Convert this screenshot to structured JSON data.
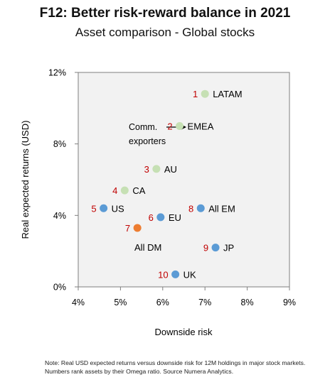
{
  "title": "F12: Better risk-reward balance in 2021",
  "subtitle": "Asset comparison - Global stocks",
  "note": "Note: Real USD expected returns versus downside risk for 12M holdings in major stock markets. Numbers rank assets by their Omega ratio. Source Numera Analytics.",
  "chart_data": {
    "type": "scatter",
    "title": "F12: Better risk-reward balance in 2021",
    "subtitle": "Asset comparison - Global stocks",
    "xlabel": "Downside risk",
    "ylabel": "Real expected returns (USD)",
    "xlim": [
      4,
      9
    ],
    "ylim": [
      0,
      12
    ],
    "xticks": [
      "4%",
      "5%",
      "6%",
      "7%",
      "8%",
      "9%"
    ],
    "yticks": [
      "0%",
      "4%",
      "8%",
      "12%"
    ],
    "grid": false,
    "annotation": {
      "text_line1": "Comm.",
      "text_line2": "exporters",
      "arrow_to": "EMEA"
    },
    "colors": {
      "commodity": "#c6e0b4",
      "blue": "#5b9bd5",
      "orange": "#ed7d31",
      "rank": "#c00000"
    },
    "points": [
      {
        "rank": "1",
        "label": "LATAM",
        "x": 7.0,
        "y": 10.8,
        "group": "commodity"
      },
      {
        "rank": "2",
        "label": "EMEA",
        "x": 6.4,
        "y": 9.0,
        "group": "commodity"
      },
      {
        "rank": "3",
        "label": "AU",
        "x": 5.85,
        "y": 6.6,
        "group": "commodity"
      },
      {
        "rank": "4",
        "label": "CA",
        "x": 5.1,
        "y": 5.4,
        "group": "commodity"
      },
      {
        "rank": "5",
        "label": "US",
        "x": 4.6,
        "y": 4.4,
        "group": "blue"
      },
      {
        "rank": "6",
        "label": "EU",
        "x": 5.95,
        "y": 3.9,
        "group": "blue"
      },
      {
        "rank": "7",
        "label": "All DM",
        "x": 5.4,
        "y": 3.3,
        "group": "orange"
      },
      {
        "rank": "8",
        "label": "All EM",
        "x": 6.9,
        "y": 4.4,
        "group": "blue"
      },
      {
        "rank": "9",
        "label": "JP",
        "x": 7.25,
        "y": 2.2,
        "group": "blue"
      },
      {
        "rank": "10",
        "label": "UK",
        "x": 6.3,
        "y": 0.7,
        "group": "blue"
      }
    ]
  }
}
